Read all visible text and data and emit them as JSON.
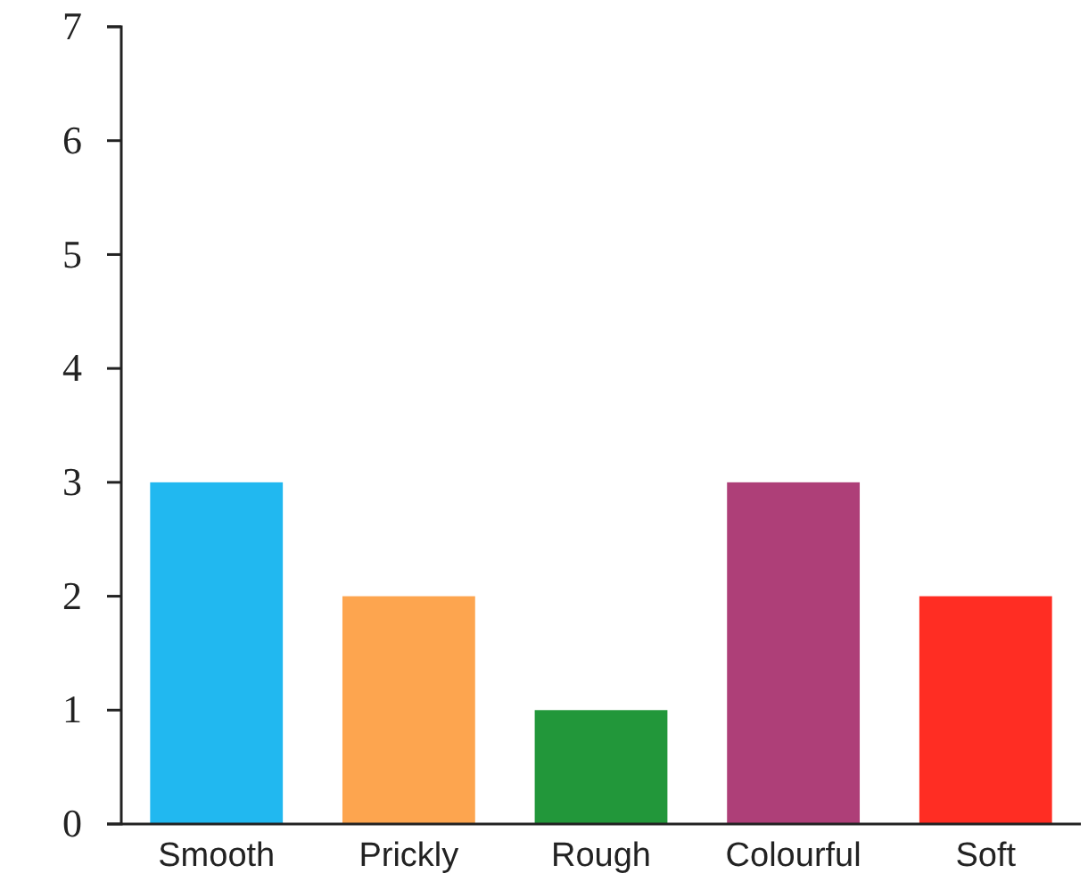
{
  "chart_data": {
    "type": "bar",
    "categories": [
      "Smooth",
      "Prickly",
      "Rough",
      "Colourful",
      "Soft"
    ],
    "values": [
      3,
      2,
      1,
      3,
      2
    ],
    "colors": [
      "#21b8f0",
      "#fda54f",
      "#22973a",
      "#ae3f78",
      "#ff2d23"
    ],
    "ylim": [
      0,
      7
    ],
    "yticks": [
      0,
      1,
      2,
      3,
      4,
      5,
      6,
      7
    ],
    "grid": false
  }
}
